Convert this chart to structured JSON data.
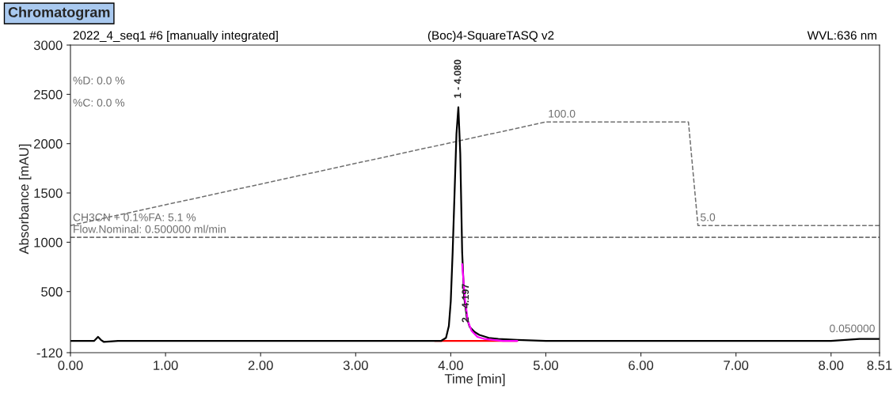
{
  "chart_data": {
    "type": "line",
    "title": "Chromatogram",
    "xlabel": "Time [min]",
    "ylabel": "Absorbance [mAU]",
    "xlim": [
      0,
      8.51
    ],
    "ylim": [
      -120,
      3000
    ],
    "xticks": [
      {
        "value": 0,
        "label": "0.00"
      },
      {
        "value": 1,
        "label": "1.00"
      },
      {
        "value": 2,
        "label": "2.00"
      },
      {
        "value": 3,
        "label": "3.00"
      },
      {
        "value": 4,
        "label": "4.00"
      },
      {
        "value": 5,
        "label": "5.00"
      },
      {
        "value": 6,
        "label": "6.00"
      },
      {
        "value": 7,
        "label": "7.00"
      },
      {
        "value": 8,
        "label": "8.00"
      },
      {
        "value": 8.51,
        "label": "8.51"
      }
    ],
    "yticks": [
      -120,
      500,
      1000,
      1500,
      2000,
      2500,
      3000
    ],
    "grid": false,
    "legend": false,
    "series": [
      {
        "color": "#707070",
        "line_style": "dashed",
        "x": [
          0,
          5.0,
          6.5,
          6.6,
          8.51
        ],
        "values": [
          1170,
          2220,
          2220,
          1170,
          1170
        ]
      },
      {
        "color": "#707070",
        "line_style": "dashed",
        "x": [
          0,
          8.51
        ],
        "values": [
          1050,
          1050
        ]
      },
      {
        "color": "#ff0000",
        "line_style": "solid",
        "x": [
          3.83,
          4.7
        ],
        "values": [
          0,
          0
        ]
      },
      {
        "color": "#000000",
        "line_style": "solid",
        "x": [
          0,
          0.25,
          0.29,
          0.32,
          0.35,
          0.5,
          1.0,
          2.0,
          3.0,
          3.8,
          3.9,
          3.95,
          3.98,
          4.0,
          4.02,
          4.04,
          4.06,
          4.08,
          4.1,
          4.12,
          4.14,
          4.17,
          4.2,
          4.25,
          4.3,
          4.4,
          4.5,
          4.7,
          5.0,
          6.0,
          7.0,
          8.0,
          8.3,
          8.51
        ],
        "values": [
          0,
          0,
          40,
          10,
          -10,
          0,
          0,
          0,
          0,
          0,
          0,
          30,
          150,
          400,
          900,
          1500,
          2100,
          2370,
          1900,
          900,
          450,
          230,
          140,
          90,
          60,
          30,
          20,
          10,
          0,
          0,
          0,
          0,
          20,
          20
        ]
      },
      {
        "color": "#ff00ff",
        "line_style": "solid",
        "x": [
          4.12,
          4.15,
          4.18,
          4.22,
          4.28,
          4.35,
          4.45,
          4.55,
          4.7
        ],
        "values": [
          780,
          420,
          200,
          100,
          40,
          20,
          10,
          0,
          0
        ]
      }
    ],
    "annotations": [
      "2022_4_seq1 #6 [manually integrated]",
      "(Boc)4-SquareTASQ v2",
      "WVL:636 nm",
      "%D: 0.0 %",
      "%C: 0.0 %",
      "CH3CN + 0.1%FA: 5.1 %",
      "Flow.Nominal: 0.500000 ml/min",
      {
        "text": "100.0",
        "x": 5.0,
        "y": 2220
      },
      {
        "text": "5.0",
        "x": 6.6,
        "y": 1170
      },
      {
        "text": "0.050000",
        "x": 8.51,
        "y": 20
      },
      {
        "text": "1 - 4.080",
        "x": 4.08,
        "y": 2370
      },
      {
        "text": "2 - 4.197",
        "x": 4.197,
        "y": 140
      }
    ]
  }
}
